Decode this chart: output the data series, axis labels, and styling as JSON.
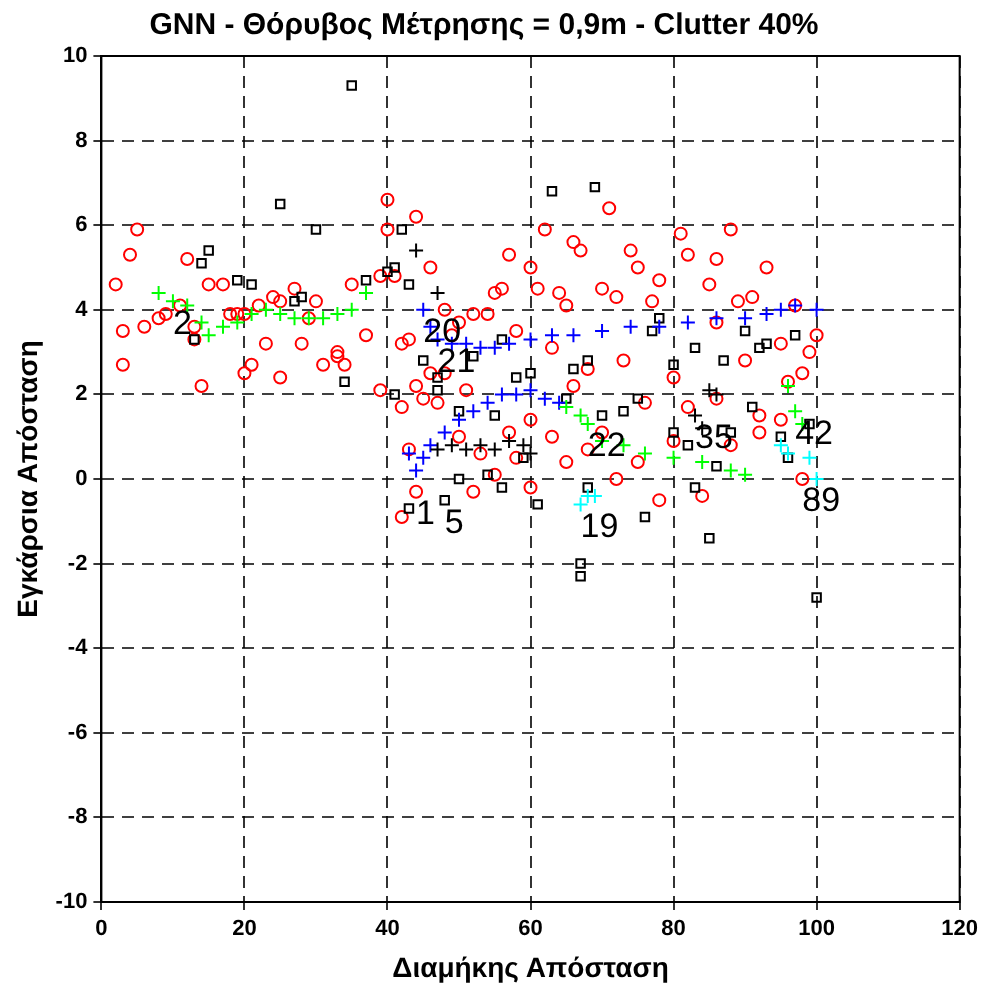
{
  "chart_data": {
    "type": "scatter",
    "title": "GNN - Θόρυβος Μέτρησης = 0,9m - Clutter 40%",
    "xlabel": "Διαμήκης Απόσταση",
    "ylabel": "Εγκάρσια Απόσταση",
    "xlim": [
      0,
      120
    ],
    "xticks": [
      0,
      20,
      40,
      60,
      80,
      100,
      120
    ],
    "ylim": [
      -10,
      10
    ],
    "yticks": [
      -10,
      -8,
      -6,
      -4,
      -2,
      0,
      2,
      4,
      6,
      8,
      10
    ],
    "grid": true,
    "legend": false,
    "series": [
      {
        "color": "#ff0000",
        "marker": "circle",
        "x": [
          2,
          3,
          4,
          5,
          3,
          6,
          8,
          9,
          11,
          12,
          13,
          13,
          14,
          15,
          17,
          18,
          19,
          20,
          20,
          21,
          22,
          23,
          24,
          25,
          25,
          27,
          28,
          29,
          30,
          31,
          33,
          33,
          34,
          35,
          37,
          39,
          39,
          40,
          40,
          41,
          42,
          42,
          43,
          44,
          45,
          44,
          46,
          46,
          47,
          43,
          44,
          42,
          48,
          49,
          50,
          51,
          52,
          54,
          55,
          56,
          57,
          58,
          60,
          61,
          62,
          63,
          64,
          65,
          66,
          67,
          68,
          70,
          71,
          72,
          73,
          74,
          75,
          77,
          78,
          80,
          81,
          82,
          85,
          86,
          86,
          88,
          89,
          90,
          91,
          92,
          93,
          95,
          96,
          97,
          98,
          99,
          100,
          52,
          55,
          58,
          60,
          63,
          65,
          68,
          70,
          72,
          75,
          78,
          80,
          82,
          84,
          88,
          92,
          95,
          98,
          60,
          57,
          53,
          50,
          48,
          66,
          76,
          86
        ],
        "values": [
          4.6,
          3.5,
          5.3,
          5.9,
          2.7,
          3.6,
          3.8,
          3.9,
          4.1,
          5.2,
          3.3,
          3.6,
          2.2,
          4.6,
          4.6,
          3.9,
          3.9,
          3.9,
          2.5,
          2.7,
          4.1,
          3.2,
          4.3,
          4.2,
          2.4,
          4.5,
          3.2,
          3.8,
          4.2,
          2.7,
          3.0,
          2.9,
          2.7,
          4.6,
          3.4,
          2.1,
          4.8,
          5.9,
          6.6,
          4.8,
          3.2,
          1.7,
          3.3,
          2.2,
          1.9,
          6.2,
          5.0,
          2.5,
          1.8,
          0.7,
          -0.3,
          -0.9,
          4.0,
          3.4,
          3.7,
          2.1,
          3.9,
          3.9,
          4.4,
          4.5,
          5.3,
          3.5,
          5.0,
          4.5,
          5.9,
          3.1,
          4.4,
          4.1,
          5.6,
          5.4,
          2.6,
          4.5,
          6.4,
          4.3,
          2.8,
          5.4,
          5.0,
          4.2,
          4.7,
          2.4,
          5.8,
          5.3,
          4.6,
          5.2,
          3.7,
          5.9,
          4.2,
          2.8,
          4.3,
          1.5,
          5.0,
          3.2,
          2.3,
          4.1,
          2.5,
          3.0,
          3.4,
          -0.3,
          0.1,
          0.5,
          -0.2,
          1.0,
          0.4,
          0.7,
          1.1,
          0.0,
          0.4,
          -0.5,
          0.9,
          1.7,
          -0.4,
          0.8,
          1.1,
          1.4,
          0.0,
          1.4,
          1.1,
          0.6,
          1.0,
          2.5,
          2.2,
          1.8,
          1.9
        ]
      },
      {
        "color": "#000000",
        "marker": "square",
        "x": [
          35,
          15,
          14,
          25,
          30,
          19,
          21,
          27,
          28,
          13,
          34,
          37,
          40,
          41,
          42,
          43,
          41,
          45,
          47,
          47,
          50,
          52,
          55,
          56,
          58,
          60,
          63,
          69,
          66,
          68,
          65,
          70,
          73,
          75,
          77,
          78,
          80,
          82,
          83,
          85,
          86,
          87,
          88,
          90,
          91,
          92,
          93,
          95,
          96,
          97,
          99,
          100,
          48,
          50,
          54,
          56,
          59,
          61,
          43,
          67,
          67,
          68,
          76,
          80,
          83
        ],
        "values": [
          9.3,
          5.4,
          5.1,
          6.5,
          5.9,
          4.7,
          4.6,
          4.2,
          4.3,
          3.3,
          2.3,
          4.7,
          4.9,
          5.0,
          5.9,
          4.6,
          2.0,
          2.8,
          2.4,
          2.1,
          1.6,
          2.9,
          1.5,
          3.3,
          2.4,
          2.5,
          6.8,
          6.9,
          2.6,
          2.8,
          1.9,
          1.5,
          1.6,
          1.9,
          3.5,
          3.8,
          1.1,
          0.8,
          -0.2,
          -1.4,
          0.3,
          2.8,
          1.1,
          3.5,
          1.7,
          3.1,
          3.2,
          1.0,
          0.5,
          3.4,
          1.3,
          -2.8,
          -0.5,
          0.0,
          0.1,
          -0.2,
          0.5,
          -0.6,
          -0.7,
          -2.0,
          -2.3,
          -0.2,
          -0.9,
          2.7,
          3.1
        ]
      },
      {
        "color": "#00ff00",
        "marker": "cross",
        "x": [
          8,
          10,
          12,
          14,
          15,
          17,
          19,
          21,
          23,
          25,
          27,
          29,
          31,
          33,
          35,
          37
        ],
        "values": [
          4.4,
          4.2,
          4.1,
          3.7,
          3.4,
          3.6,
          3.7,
          3.9,
          4.0,
          3.9,
          3.8,
          3.8,
          3.8,
          3.9,
          4.0,
          4.4
        ]
      },
      {
        "color": "#0000ff",
        "marker": "cross",
        "x": [
          45,
          46,
          47,
          49,
          51,
          53,
          55,
          57,
          60,
          63,
          66,
          70,
          74,
          78,
          82,
          86,
          90,
          93,
          95,
          97,
          100
        ],
        "values": [
          4.0,
          3.6,
          3.3,
          3.2,
          3.2,
          3.1,
          3.1,
          3.2,
          3.3,
          3.4,
          3.4,
          3.5,
          3.6,
          3.6,
          3.7,
          3.8,
          3.8,
          3.9,
          4.0,
          4.1,
          4.0
        ]
      },
      {
        "color": "#0000ff",
        "marker": "cross",
        "x": [
          43,
          44,
          45,
          46,
          48,
          50,
          52,
          54,
          56,
          58,
          60,
          62,
          64
        ],
        "values": [
          0.6,
          0.2,
          0.5,
          0.8,
          1.1,
          1.4,
          1.6,
          1.8,
          2.0,
          2.0,
          2.1,
          1.9,
          1.8
        ]
      },
      {
        "color": "#000000",
        "marker": "cross",
        "x": [
          44,
          47,
          47,
          49,
          51,
          53,
          55,
          57,
          59,
          60,
          83,
          84,
          85,
          86
        ],
        "values": [
          5.4,
          4.4,
          0.7,
          0.8,
          0.7,
          0.8,
          0.7,
          0.9,
          0.8,
          0.6,
          1.5,
          1.2,
          2.1,
          2.0
        ]
      },
      {
        "color": "#00ff00",
        "marker": "cross",
        "x": [
          65,
          67,
          68,
          70,
          73,
          76,
          80,
          84,
          88,
          90,
          96,
          97,
          98
        ],
        "values": [
          1.7,
          1.5,
          1.3,
          0.9,
          0.8,
          0.6,
          0.5,
          0.4,
          0.2,
          0.1,
          2.2,
          1.6,
          1.3
        ]
      },
      {
        "color": "#00ffff",
        "marker": "cross",
        "x": [
          67,
          68,
          69,
          95,
          96,
          99,
          100
        ],
        "values": [
          -0.6,
          -0.4,
          -0.4,
          0.8,
          0.6,
          0.5,
          0.0
        ]
      }
    ],
    "annotations": [
      {
        "text": "2",
        "x": 10,
        "y": 4.2
      },
      {
        "text": "20",
        "x": 45,
        "y": 4.0
      },
      {
        "text": "21",
        "x": 47,
        "y": 3.3
      },
      {
        "text": "1",
        "x": 44,
        "y": -0.3
      },
      {
        "text": "5",
        "x": 48,
        "y": -0.5
      },
      {
        "text": "19",
        "x": 67,
        "y": -0.6
      },
      {
        "text": "22",
        "x": 68,
        "y": 1.3
      },
      {
        "text": "35",
        "x": 83,
        "y": 1.5
      },
      {
        "text": "89",
        "x": 98,
        "y": 0.0
      },
      {
        "text": "42",
        "x": 97,
        "y": 1.6
      }
    ]
  }
}
